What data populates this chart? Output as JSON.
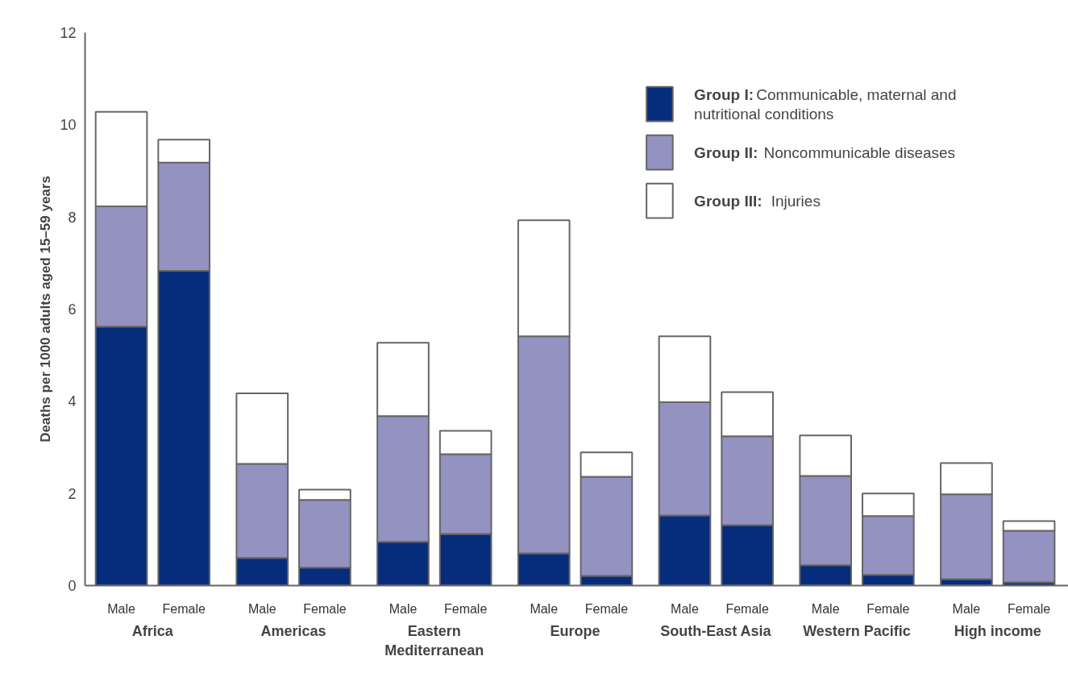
{
  "chart_data": {
    "type": "bar",
    "stacked": true,
    "ylabel": "Deaths per 1000 adults aged 15–59 years",
    "categories": [
      "Male",
      "Female",
      "Male",
      "Female",
      "Male",
      "Female",
      "Male",
      "Female",
      "Male",
      "Female",
      "Male",
      "Female",
      "Male",
      "Female"
    ],
    "annotations": [
      "Africa",
      "Americas",
      "Eastern Mediterranean",
      "Europe",
      "South-East Asia",
      "Western Pacific",
      "High income"
    ],
    "series": [
      {
        "name": "Group I: Communicable, maternal and nutritional conditions",
        "color": "#062d7c",
        "values": [
          5.62,
          6.83,
          0.6,
          0.39,
          0.95,
          1.12,
          0.7,
          0.21,
          1.52,
          1.31,
          0.44,
          0.23,
          0.14,
          0.07
        ]
      },
      {
        "name": "Group II: Noncommunicable diseases",
        "color": "#9492c0",
        "values": [
          2.61,
          2.35,
          2.04,
          1.47,
          2.73,
          1.73,
          4.71,
          2.15,
          2.46,
          1.93,
          1.94,
          1.28,
          1.84,
          1.12
        ]
      },
      {
        "name": "Group III: Injuries",
        "color": "#ffffff",
        "values": [
          2.05,
          0.5,
          1.53,
          0.22,
          1.59,
          0.51,
          2.52,
          0.53,
          1.43,
          0.96,
          0.88,
          0.49,
          0.68,
          0.21
        ]
      }
    ],
    "ylim": [
      0,
      12
    ],
    "yticks": [
      0,
      2,
      4,
      6,
      8,
      10,
      12
    ],
    "grid": false,
    "legend": "top right"
  }
}
